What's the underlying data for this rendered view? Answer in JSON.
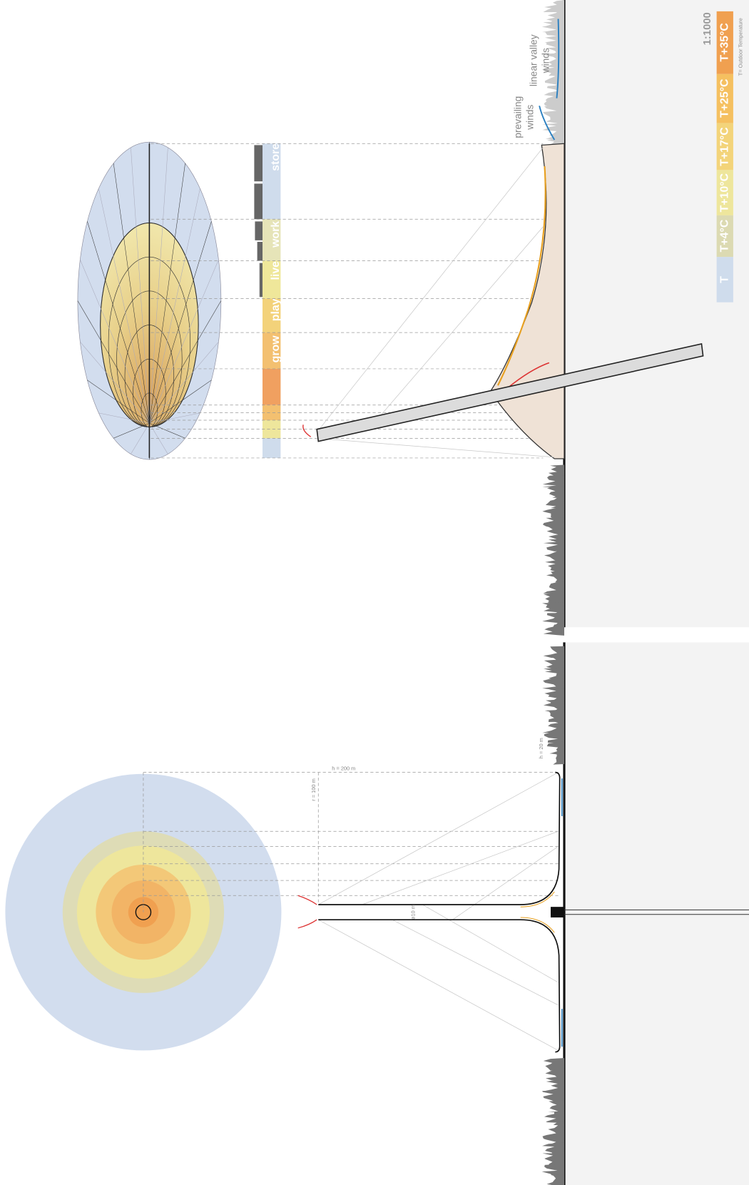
{
  "scale": "1:1000",
  "legend": {
    "items": [
      "T+35°C",
      "T+25°C",
      "T+17°C",
      "T+10°C",
      "T+4°C",
      "T"
    ],
    "note": "T= Outdoor Temperature"
  },
  "program": [
    "store",
    "work",
    "live",
    "play",
    "grow"
  ],
  "annotations": {
    "prevailing_winds": [
      "prevailing",
      "winds"
    ],
    "valley_winds": [
      "linear valley",
      "winds"
    ]
  },
  "dimensions": {
    "height": "h = 200 m",
    "radius": "r = 100 m",
    "base_height": "h = 20 m",
    "diameter": "ø10 m"
  }
}
